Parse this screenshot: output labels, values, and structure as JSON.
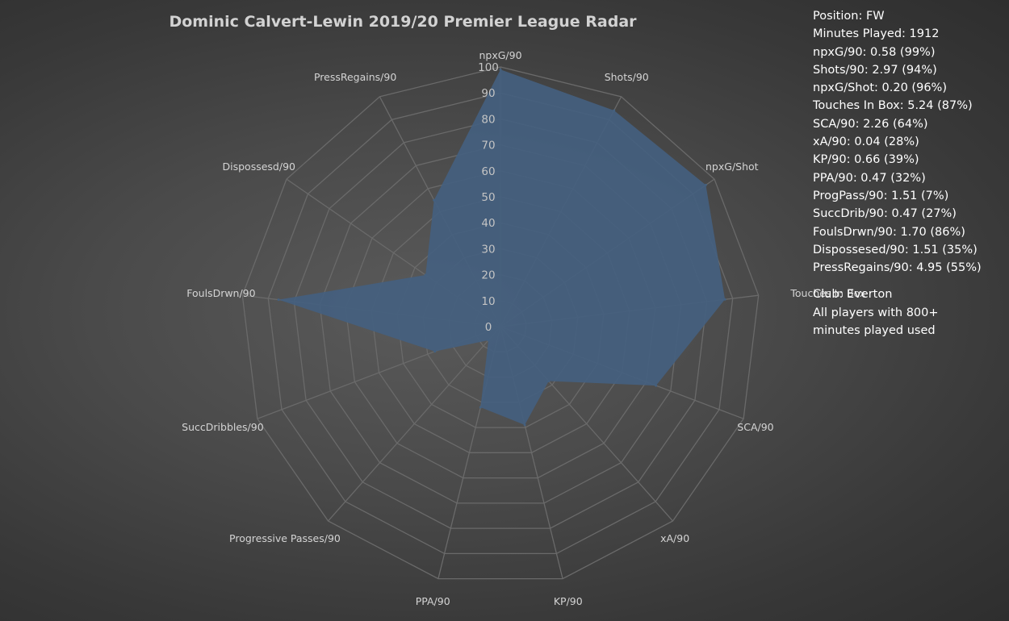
{
  "chart_data": {
    "type": "radar",
    "title": "Dominic Calvert-Lewin 2019/20 Premier League Radar",
    "axes": [
      "npxG/90",
      "Shots/90",
      "npxG/Shot",
      "Touches In Box",
      "SCA/90",
      "xA/90",
      "KP/90",
      "PPA/90",
      "Progressive Passes/90",
      "SuccDribbles/90",
      "FoulsDrwn/90",
      "Dispossesd/90",
      "PressRegains/90"
    ],
    "values": [
      99,
      94,
      96,
      87,
      64,
      28,
      39,
      32,
      7,
      27,
      86,
      35,
      55
    ],
    "rlim": [
      0,
      100
    ],
    "ticks": [
      0,
      10,
      20,
      30,
      40,
      50,
      60,
      70,
      80,
      90,
      100
    ],
    "grid": true,
    "colors": {
      "fill": "#44607f",
      "grid": "#6a6a6a",
      "axis_label": "#d4d4d4",
      "tick_label": "#c4c4c4"
    }
  },
  "info": {
    "stats": [
      "Position: FW",
      "Minutes Played: 1912",
      "npxG/90: 0.58 (99%)",
      "Shots/90: 2.97 (94%)",
      "npxG/Shot: 0.20 (96%)",
      "Touches In Box: 5.24 (87%)",
      "SCA/90: 2.26 (64%)",
      "xA/90: 0.04 (28%)",
      "KP/90: 0.66 (39%)",
      "PPA/90: 0.47 (32%)",
      "ProgPass/90: 1.51 (7%)",
      "SuccDrib/90: 0.47 (27%)",
      "FoulsDrwn/90: 1.70 (86%)",
      "Dispossesed/90: 1.51 (35%)",
      "PressRegains/90: 4.95 (55%)"
    ],
    "notes": [
      "Club: Everton",
      "All players with 800+",
      "minutes played used"
    ]
  }
}
